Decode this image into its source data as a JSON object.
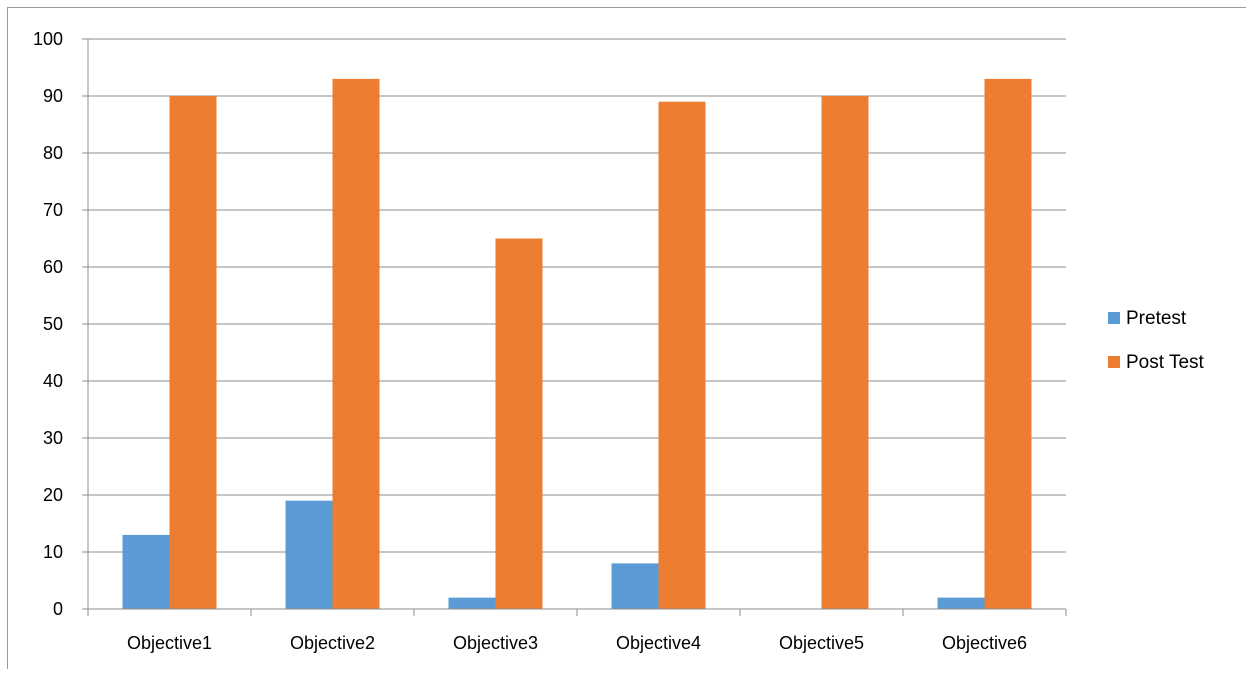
{
  "chart_data": {
    "type": "bar",
    "categories": [
      "Objective1",
      "Objective2",
      "Objective3",
      "Objective4",
      "Objective5",
      "Objective6"
    ],
    "series": [
      {
        "name": "Pretest",
        "values": [
          13,
          19,
          2,
          8,
          0,
          2
        ],
        "color": "#5B9BD5"
      },
      {
        "name": "Post Test",
        "values": [
          90,
          93,
          65,
          89,
          90,
          93
        ],
        "color": "#ED7D31"
      }
    ],
    "ylim": [
      0,
      100
    ],
    "yticks": [
      0,
      10,
      20,
      30,
      40,
      50,
      60,
      70,
      80,
      90,
      100
    ],
    "grid": true,
    "legend_position": "right",
    "title": "",
    "xlabel": "",
    "ylabel": ""
  }
}
